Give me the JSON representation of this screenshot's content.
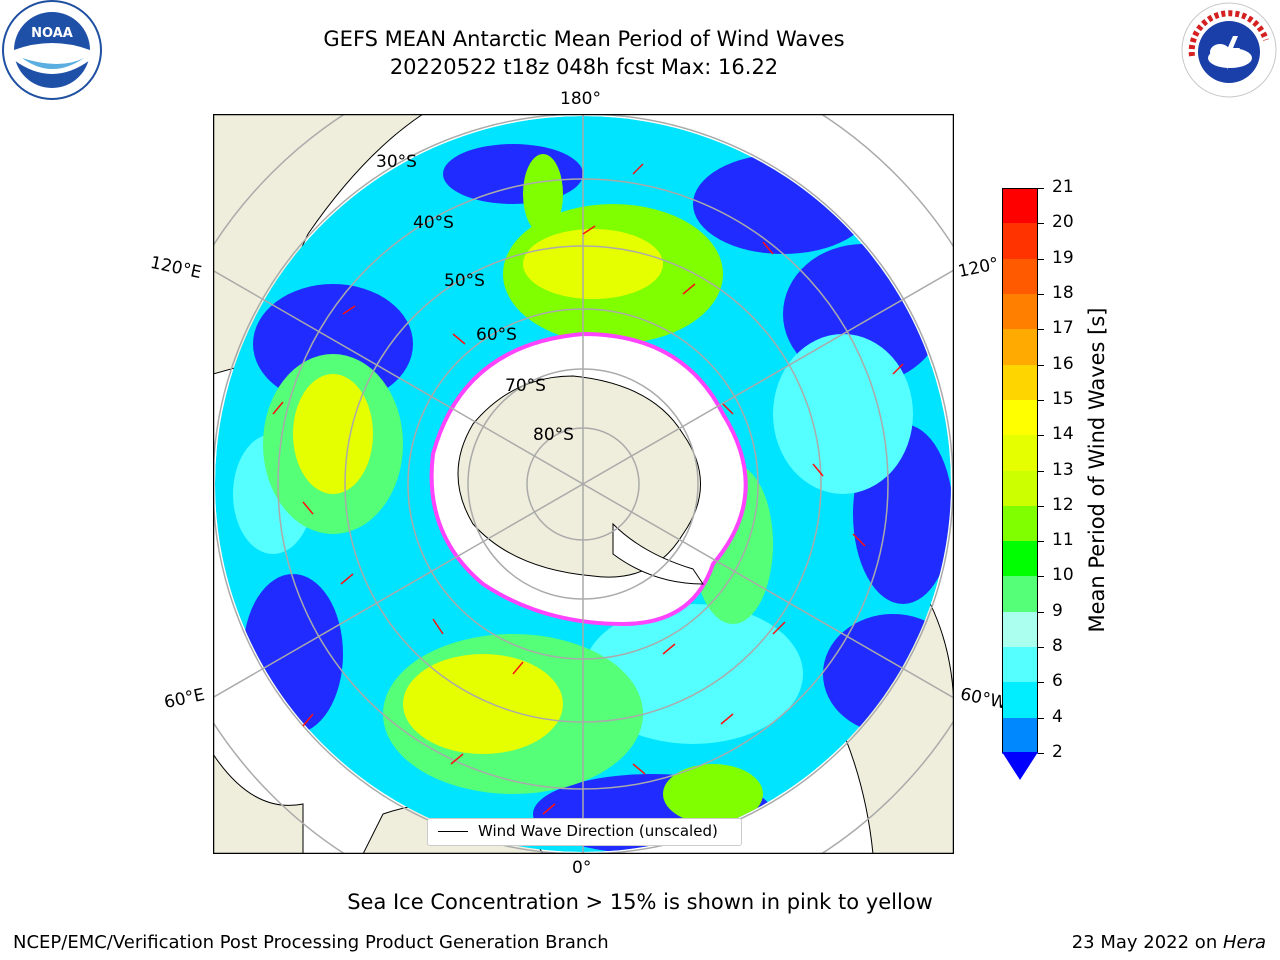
{
  "title": {
    "line1": "GEFS MEAN Antarctic Mean Period of Wind Waves",
    "line2": "20220522 t18z 048h fcst   Max: 16.22"
  },
  "logos": {
    "left": "NOAA",
    "right": "NATIONAL WEATHER SERVICE"
  },
  "map": {
    "longitude_labels": {
      "top": "180°",
      "bottom": "0°",
      "upper_left": "120°E",
      "upper_right": "120°",
      "lower_left": "60°E",
      "lower_right": "60°W"
    },
    "latitude_labels": [
      "30°S",
      "40°S",
      "50°S",
      "60°S",
      "70°S",
      "80°S"
    ],
    "legend": "Wind Wave Direction (unscaled)",
    "note": "Sea Ice Concentration > 15% is shown in pink to yellow"
  },
  "colorbar": {
    "label": "Mean Period of Wind Waves [s]",
    "ticks": [
      "21",
      "20",
      "19",
      "18",
      "17",
      "16",
      "15",
      "14",
      "13",
      "12",
      "11",
      "10",
      "9",
      "8",
      "6",
      "4",
      "2"
    ],
    "colors": [
      "#ff0000",
      "#ff3300",
      "#ff5a00",
      "#ff8000",
      "#ffaa00",
      "#ffd500",
      "#ffff00",
      "#e6ff00",
      "#ccff00",
      "#80ff00",
      "#00ff00",
      "#55ff77",
      "#aaffee",
      "#55ffff",
      "#00eeff",
      "#0088ff"
    ],
    "underflow_color": "#0000ff"
  },
  "footer": {
    "left": "NCEP/EMC/Verification Post Processing Product Generation Branch",
    "date": "23 May 2022 on ",
    "machine": "Hera"
  }
}
